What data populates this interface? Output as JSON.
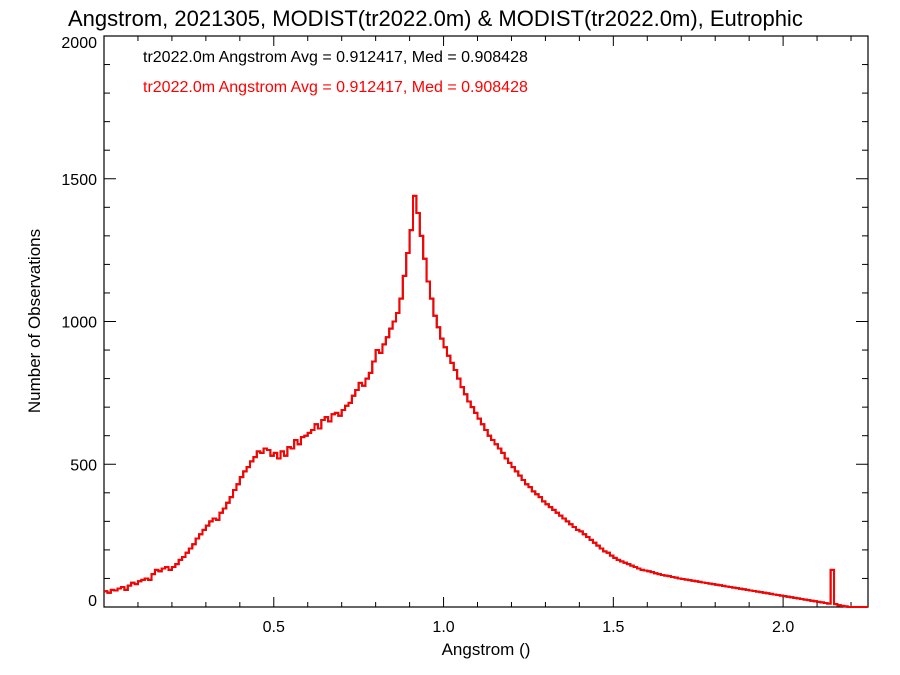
{
  "chart_data": {
    "type": "step-histogram",
    "title": "Angstrom, 2021305, MODIST(tr2022.0m) & MODIST(tr2022.0m), Eutrophic",
    "xlabel": "Angstrom ()",
    "ylabel": "Number of Observations",
    "xlim": [
      0.0,
      2.25
    ],
    "ylim": [
      0,
      2000
    ],
    "xticks": [
      "0.5",
      "1.0",
      "1.5",
      "2.0"
    ],
    "yticks": [
      "0",
      "500",
      "1000",
      "1500",
      "2000"
    ],
    "grid": false,
    "legend_position": "top-left",
    "legend": [
      {
        "text": "tr2022.0m Angstrom Avg = 0.912417, Med = 0.908428",
        "color": "#000000"
      },
      {
        "text": "tr2022.0m Angstrom Avg = 0.912417, Med = 0.908428",
        "color": "#ff0000"
      }
    ],
    "series_color": "#ff0000",
    "bin_width": 0.01,
    "x_start": 0.0,
    "values": [
      55,
      50,
      60,
      58,
      65,
      70,
      60,
      75,
      85,
      80,
      90,
      95,
      100,
      95,
      115,
      130,
      125,
      135,
      140,
      130,
      140,
      150,
      165,
      175,
      190,
      205,
      220,
      240,
      255,
      270,
      285,
      300,
      310,
      305,
      330,
      345,
      365,
      385,
      410,
      430,
      455,
      475,
      490,
      510,
      525,
      545,
      540,
      555,
      550,
      530,
      540,
      520,
      545,
      530,
      560,
      555,
      585,
      570,
      595,
      600,
      610,
      620,
      640,
      625,
      655,
      665,
      650,
      675,
      680,
      670,
      690,
      705,
      715,
      740,
      760,
      785,
      775,
      800,
      820,
      860,
      900,
      890,
      920,
      945,
      975,
      1000,
      1030,
      1080,
      1160,
      1240,
      1320,
      1440,
      1380,
      1300,
      1220,
      1140,
      1080,
      1020,
      980,
      940,
      910,
      880,
      855,
      830,
      800,
      770,
      745,
      720,
      700,
      680,
      660,
      640,
      620,
      600,
      585,
      570,
      555,
      540,
      520,
      505,
      490,
      475,
      460,
      445,
      430,
      420,
      405,
      395,
      385,
      370,
      360,
      350,
      340,
      330,
      320,
      310,
      300,
      290,
      280,
      270,
      265,
      255,
      245,
      235,
      225,
      215,
      205,
      195,
      190,
      180,
      172,
      165,
      160,
      155,
      150,
      145,
      140,
      135,
      130,
      128,
      125,
      122,
      118,
      115,
      112,
      110,
      108,
      105,
      103,
      100,
      98,
      96,
      94,
      92,
      90,
      88,
      86,
      84,
      82,
      80,
      78,
      76,
      74,
      72,
      70,
      68,
      66,
      64,
      62,
      60,
      58,
      56,
      54,
      52,
      50,
      48,
      46,
      44,
      42,
      40,
      38,
      36,
      34,
      32,
      30,
      28,
      26,
      24,
      22,
      20,
      18,
      16,
      14,
      12,
      130,
      10,
      6,
      4,
      2,
      0,
      0,
      0,
      0,
      0,
      0
    ]
  }
}
